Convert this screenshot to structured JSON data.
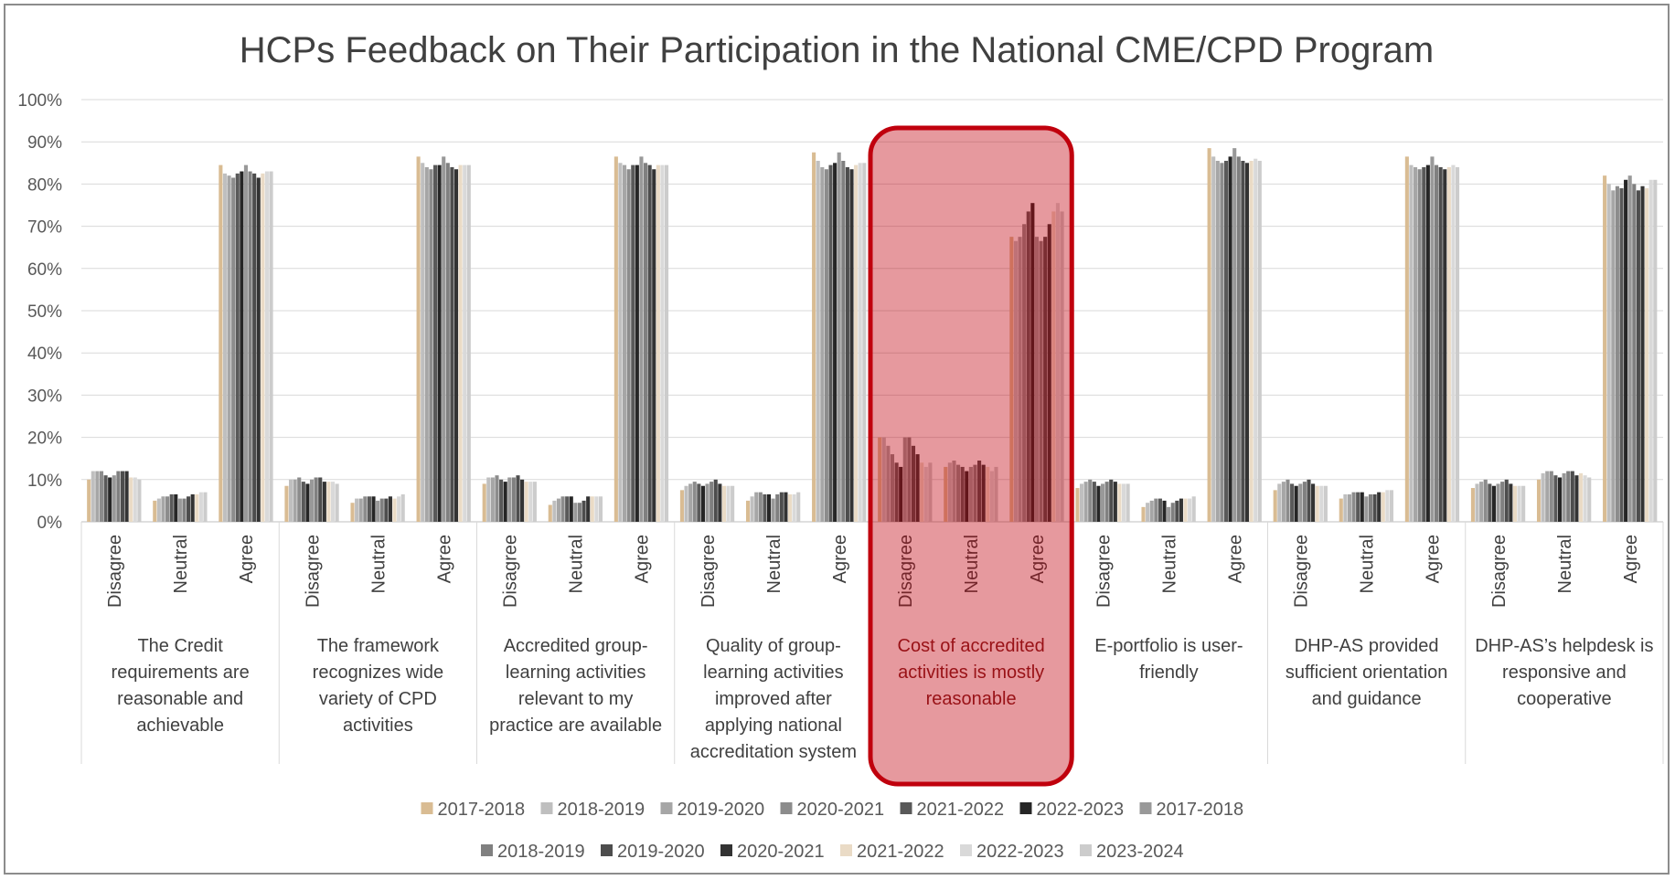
{
  "chart_data": {
    "type": "bar",
    "title": "HCPs Feedback on Their Participation in the National CME/CPD Program",
    "xlabel": "",
    "ylabel": "",
    "ylim": [
      0,
      1
    ],
    "y_ticks": [
      0,
      0.1,
      0.2,
      0.3,
      0.4,
      0.5,
      0.6,
      0.7,
      0.8,
      0.9,
      1.0
    ],
    "y_tick_labels": [
      "0%",
      "10%",
      "20%",
      "30%",
      "40%",
      "50%",
      "60%",
      "70%",
      "80%",
      "90%",
      "100%"
    ],
    "grid": true,
    "legend_position": "bottom",
    "responses": [
      "Disagree",
      "Neutral",
      "Agree"
    ],
    "statements": [
      "The Credit requirements are reasonable and achievable",
      "The framework recognizes wide variety of CPD activities",
      "Accredited group-learning activities relevant to my practice are available",
      "Quality of group-learning activities improved after applying national accreditation system",
      "Cost of accredited activities is mostly reasonable",
      "E-portfolio is user-friendly",
      "DHP-AS provided sufficient orientation and guidance",
      "DHP-AS's helpdesk is responsive and cooperative"
    ],
    "statement_lines": [
      [
        "The Credit",
        "requirements are",
        "reasonable and",
        "achievable"
      ],
      [
        "The framework",
        "recognizes wide",
        "variety of CPD",
        "activities"
      ],
      [
        "Accredited group-",
        "learning activities",
        "relevant to my",
        "practice are available"
      ],
      [
        "Quality of group-",
        "learning activities",
        "improved after",
        "applying national",
        "accreditation system"
      ],
      [
        "Cost of accredited",
        "activities is mostly",
        "reasonable"
      ],
      [
        "E-portfolio is user-",
        "friendly"
      ],
      [
        "DHP-AS provided",
        "sufficient orientation",
        "and guidance"
      ],
      [
        "DHP-AS’s helpdesk is",
        "responsive and",
        "cooperative"
      ]
    ],
    "highlighted_statement_index": 4,
    "highlight_color": "#c0000d",
    "series": [
      {
        "name": "2017-2018",
        "color": "#d9bc93"
      },
      {
        "name": "2018-2019",
        "color": "#bfbfbf"
      },
      {
        "name": "2019-2020",
        "color": "#a6a6a6"
      },
      {
        "name": "2020-2021",
        "color": "#8c8c8c"
      },
      {
        "name": "2021-2022",
        "color": "#595959"
      },
      {
        "name": "2022-2023",
        "color": "#262626"
      },
      {
        "name": "2017-2018",
        "color": "#999999"
      },
      {
        "name": "2018-2019",
        "color": "#808080"
      },
      {
        "name": "2019-2020",
        "color": "#4d4d4d"
      },
      {
        "name": "2020-2021",
        "color": "#333333"
      },
      {
        "name": "2021-2022",
        "color": "#eadbc6"
      },
      {
        "name": "2022-2023",
        "color": "#d9d9d9"
      },
      {
        "name": "2023-2024",
        "color": "#cccccc"
      }
    ],
    "values": [
      [
        [
          0.1,
          0.12,
          0.12,
          0.12,
          0.11,
          0.105,
          0.11,
          0.12,
          0.12,
          0.12,
          0.105,
          0.105,
          0.1
        ],
        [
          0.05,
          0.055,
          0.06,
          0.06,
          0.065,
          0.065,
          0.055,
          0.055,
          0.06,
          0.065,
          0.065,
          0.07,
          0.07
        ],
        [
          0.845,
          0.825,
          0.82,
          0.815,
          0.825,
          0.83,
          0.845,
          0.83,
          0.825,
          0.815,
          0.825,
          0.83,
          0.83
        ]
      ],
      [
        [
          0.085,
          0.1,
          0.1,
          0.105,
          0.095,
          0.09,
          0.1,
          0.105,
          0.105,
          0.095,
          0.095,
          0.095,
          0.09
        ],
        [
          0.045,
          0.055,
          0.055,
          0.06,
          0.06,
          0.06,
          0.05,
          0.055,
          0.055,
          0.06,
          0.055,
          0.06,
          0.065
        ],
        [
          0.865,
          0.85,
          0.84,
          0.835,
          0.845,
          0.845,
          0.865,
          0.85,
          0.84,
          0.835,
          0.845,
          0.845,
          0.845
        ]
      ],
      [
        [
          0.09,
          0.105,
          0.105,
          0.11,
          0.1,
          0.095,
          0.105,
          0.105,
          0.11,
          0.1,
          0.095,
          0.095,
          0.095
        ],
        [
          0.04,
          0.05,
          0.055,
          0.06,
          0.06,
          0.06,
          0.045,
          0.045,
          0.05,
          0.06,
          0.06,
          0.06,
          0.06
        ],
        [
          0.865,
          0.85,
          0.845,
          0.835,
          0.845,
          0.845,
          0.865,
          0.85,
          0.845,
          0.835,
          0.845,
          0.845,
          0.845
        ]
      ],
      [
        [
          0.075,
          0.085,
          0.09,
          0.095,
          0.09,
          0.085,
          0.09,
          0.095,
          0.1,
          0.09,
          0.085,
          0.085,
          0.085
        ],
        [
          0.05,
          0.06,
          0.07,
          0.07,
          0.065,
          0.065,
          0.055,
          0.065,
          0.07,
          0.07,
          0.065,
          0.065,
          0.07
        ],
        [
          0.875,
          0.855,
          0.84,
          0.835,
          0.845,
          0.85,
          0.875,
          0.855,
          0.84,
          0.835,
          0.845,
          0.85,
          0.85
        ]
      ],
      [
        [
          0.2,
          0.2,
          0.18,
          0.16,
          0.14,
          0.13,
          0.2,
          0.2,
          0.18,
          0.16,
          0.14,
          0.13,
          0.14
        ],
        [
          0.13,
          0.14,
          0.145,
          0.135,
          0.13,
          0.12,
          0.13,
          0.135,
          0.145,
          0.135,
          0.13,
          0.12,
          0.13
        ],
        [
          0.675,
          0.665,
          0.675,
          0.705,
          0.735,
          0.755,
          0.675,
          0.665,
          0.675,
          0.705,
          0.735,
          0.755,
          0.735
        ]
      ],
      [
        [
          0.08,
          0.09,
          0.095,
          0.1,
          0.095,
          0.085,
          0.09,
          0.095,
          0.1,
          0.095,
          0.09,
          0.09,
          0.09
        ],
        [
          0.035,
          0.045,
          0.05,
          0.055,
          0.055,
          0.05,
          0.035,
          0.045,
          0.05,
          0.055,
          0.055,
          0.055,
          0.06
        ],
        [
          0.885,
          0.865,
          0.855,
          0.85,
          0.855,
          0.865,
          0.885,
          0.865,
          0.855,
          0.85,
          0.855,
          0.86,
          0.855
        ]
      ],
      [
        [
          0.075,
          0.09,
          0.095,
          0.1,
          0.09,
          0.085,
          0.09,
          0.095,
          0.1,
          0.09,
          0.085,
          0.085,
          0.085
        ],
        [
          0.055,
          0.065,
          0.065,
          0.07,
          0.07,
          0.07,
          0.06,
          0.065,
          0.065,
          0.07,
          0.07,
          0.075,
          0.075
        ],
        [
          0.865,
          0.845,
          0.84,
          0.835,
          0.84,
          0.845,
          0.865,
          0.845,
          0.84,
          0.835,
          0.84,
          0.845,
          0.84
        ]
      ],
      [
        [
          0.08,
          0.09,
          0.095,
          0.1,
          0.09,
          0.085,
          0.09,
          0.095,
          0.1,
          0.09,
          0.085,
          0.085,
          0.085
        ],
        [
          0.1,
          0.115,
          0.12,
          0.12,
          0.11,
          0.105,
          0.115,
          0.12,
          0.12,
          0.11,
          0.115,
          0.11,
          0.105
        ],
        [
          0.82,
          0.8,
          0.785,
          0.795,
          0.79,
          0.81,
          0.82,
          0.8,
          0.785,
          0.795,
          0.79,
          0.81,
          0.81
        ]
      ]
    ]
  }
}
